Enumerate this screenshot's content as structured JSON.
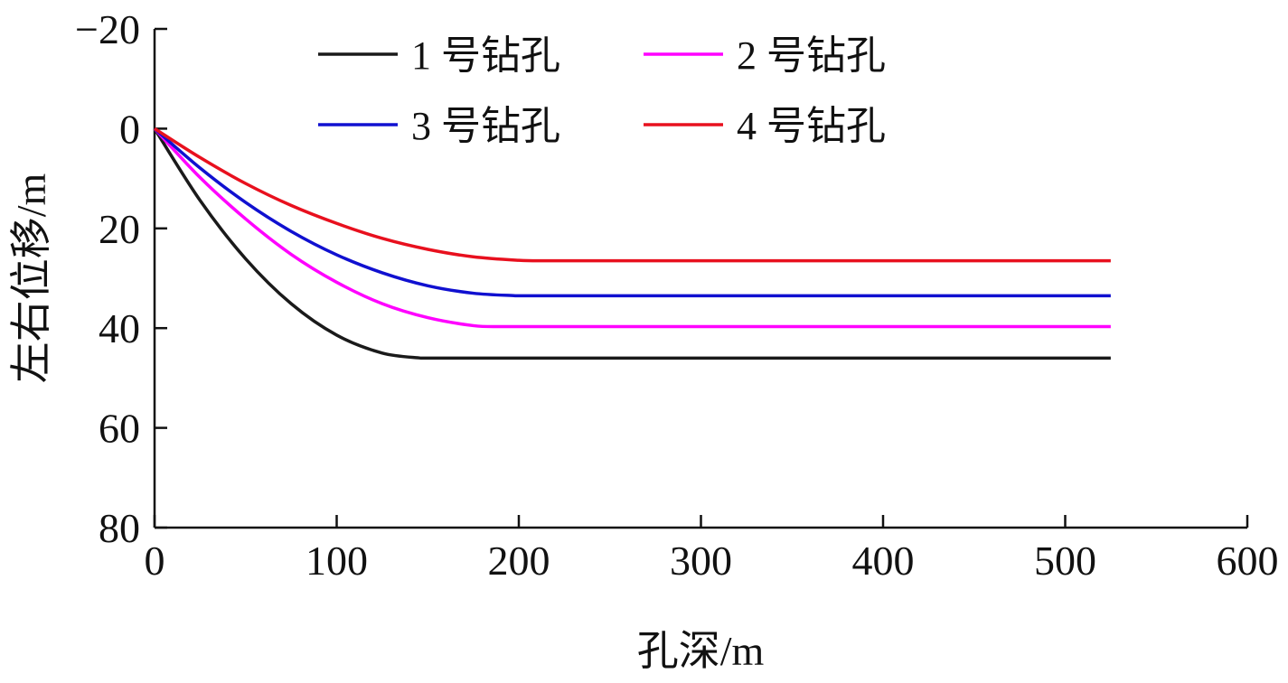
{
  "chart_data": {
    "type": "line",
    "title": "",
    "xlabel": "孔深/m",
    "ylabel": "左右位移/m",
    "xlim": [
      0,
      600
    ],
    "ylim": [
      -20,
      80
    ],
    "y_inverted": true,
    "xticks": [
      "0",
      "100",
      "200",
      "300",
      "400",
      "500",
      "600"
    ],
    "yticks": [
      "−20",
      "0",
      "20",
      "40",
      "60",
      "80"
    ],
    "xtick_values": [
      0,
      100,
      200,
      300,
      400,
      500,
      600
    ],
    "ytick_values": [
      -20,
      0,
      20,
      40,
      60,
      80
    ],
    "grid": false,
    "legend_position": "top",
    "series": [
      {
        "name": "1 号钻孔",
        "color": "#1a1a1a",
        "x": [
          0,
          25,
          50,
          75,
          100,
          125,
          146,
          525
        ],
        "y": [
          0,
          14.4,
          26.1,
          35.1,
          41.4,
          45.0,
          46.0,
          46.0
        ]
      },
      {
        "name": "2 号钻孔",
        "color": "#ff00ff",
        "x": [
          0,
          25,
          50,
          75,
          100,
          125,
          150,
          175,
          190,
          525
        ],
        "y": [
          0,
          9.8,
          18.1,
          25.2,
          30.8,
          35.1,
          37.9,
          39.5,
          39.7,
          39.7
        ]
      },
      {
        "name": "3 号钻孔",
        "color": "#1010d0",
        "x": [
          0,
          25,
          50,
          75,
          100,
          125,
          150,
          175,
          198,
          525
        ],
        "y": [
          0,
          7.9,
          14.8,
          20.6,
          25.3,
          28.9,
          31.5,
          33.0,
          33.5,
          33.5
        ]
      },
      {
        "name": "4 号钻孔",
        "color": "#e8101e",
        "x": [
          0,
          25,
          50,
          75,
          100,
          125,
          150,
          175,
          200,
          213,
          525
        ],
        "y": [
          0,
          5.8,
          11.0,
          15.4,
          19.0,
          22.0,
          24.2,
          25.7,
          26.4,
          26.5,
          26.5
        ]
      }
    ]
  }
}
